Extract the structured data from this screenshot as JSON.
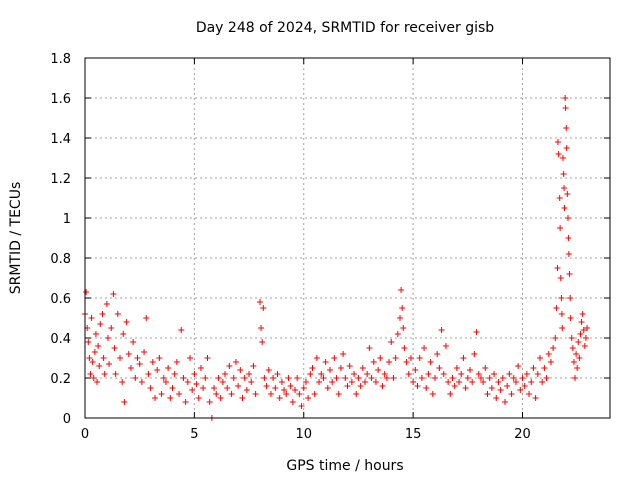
{
  "chart_data": {
    "type": "scatter",
    "title": "Day 248 of 2024, SRMTID for receiver gisb",
    "xlabel": "GPS time / hours",
    "ylabel": "SRMTID / TECUs",
    "xlim": [
      0,
      24
    ],
    "ylim": [
      0,
      1.8
    ],
    "x_ticks": [
      0,
      5,
      10,
      15,
      20
    ],
    "x_tick_labels": [
      "0",
      "5",
      "10",
      "15",
      "20"
    ],
    "y_ticks": [
      0,
      0.2,
      0.4,
      0.6,
      0.8,
      1,
      1.2,
      1.4,
      1.6,
      1.8
    ],
    "y_tick_labels": [
      "0",
      "0.2",
      "0.4",
      "0.6",
      "0.8",
      "1",
      "1.2",
      "1.4",
      "1.6",
      "1.8"
    ],
    "grid": true,
    "marker": "+",
    "color": "#ff0000",
    "series": [
      {
        "name": "SRMTID",
        "points": [
          [
            0.0,
            0.52
          ],
          [
            0.05,
            0.63
          ],
          [
            0.1,
            0.45
          ],
          [
            0.15,
            0.38
          ],
          [
            0.2,
            0.3
          ],
          [
            0.25,
            0.22
          ],
          [
            0.3,
            0.5
          ],
          [
            0.35,
            0.28
          ],
          [
            0.4,
            0.2
          ],
          [
            0.45,
            0.33
          ],
          [
            0.5,
            0.42
          ],
          [
            0.55,
            0.18
          ],
          [
            0.6,
            0.36
          ],
          [
            0.65,
            0.26
          ],
          [
            0.7,
            0.47
          ],
          [
            0.8,
            0.52
          ],
          [
            0.85,
            0.3
          ],
          [
            0.9,
            0.22
          ],
          [
            1.0,
            0.57
          ],
          [
            1.05,
            0.4
          ],
          [
            1.1,
            0.27
          ],
          [
            1.2,
            0.45
          ],
          [
            1.3,
            0.62
          ],
          [
            1.35,
            0.35
          ],
          [
            1.4,
            0.22
          ],
          [
            1.5,
            0.52
          ],
          [
            1.6,
            0.3
          ],
          [
            1.7,
            0.18
          ],
          [
            1.75,
            0.42
          ],
          [
            1.8,
            0.08
          ],
          [
            1.9,
            0.48
          ],
          [
            2.0,
            0.32
          ],
          [
            2.1,
            0.25
          ],
          [
            2.2,
            0.38
          ],
          [
            2.3,
            0.2
          ],
          [
            2.4,
            0.3
          ],
          [
            2.5,
            0.27
          ],
          [
            2.6,
            0.18
          ],
          [
            2.7,
            0.33
          ],
          [
            2.8,
            0.5
          ],
          [
            2.9,
            0.22
          ],
          [
            3.0,
            0.15
          ],
          [
            3.1,
            0.28
          ],
          [
            3.2,
            0.1
          ],
          [
            3.3,
            0.24
          ],
          [
            3.4,
            0.3
          ],
          [
            3.5,
            0.12
          ],
          [
            3.6,
            0.2
          ],
          [
            3.7,
            0.18
          ],
          [
            3.8,
            0.25
          ],
          [
            3.9,
            0.1
          ],
          [
            4.0,
            0.15
          ],
          [
            4.1,
            0.22
          ],
          [
            4.2,
            0.28
          ],
          [
            4.3,
            0.12
          ],
          [
            4.4,
            0.44
          ],
          [
            4.5,
            0.2
          ],
          [
            4.6,
            0.08
          ],
          [
            4.7,
            0.18
          ],
          [
            4.8,
            0.3
          ],
          [
            4.9,
            0.14
          ],
          [
            5.0,
            0.22
          ],
          [
            5.1,
            0.17
          ],
          [
            5.2,
            0.1
          ],
          [
            5.3,
            0.25
          ],
          [
            5.4,
            0.15
          ],
          [
            5.5,
            0.2
          ],
          [
            5.6,
            0.3
          ],
          [
            5.7,
            0.08
          ],
          [
            5.8,
            0.0
          ],
          [
            5.9,
            0.15
          ],
          [
            6.0,
            0.12
          ],
          [
            6.1,
            0.2
          ],
          [
            6.2,
            0.1
          ],
          [
            6.3,
            0.18
          ],
          [
            6.4,
            0.22
          ],
          [
            6.5,
            0.15
          ],
          [
            6.6,
            0.26
          ],
          [
            6.7,
            0.12
          ],
          [
            6.8,
            0.2
          ],
          [
            6.9,
            0.28
          ],
          [
            7.0,
            0.16
          ],
          [
            7.1,
            0.24
          ],
          [
            7.2,
            0.1
          ],
          [
            7.3,
            0.2
          ],
          [
            7.4,
            0.14
          ],
          [
            7.5,
            0.22
          ],
          [
            7.6,
            0.18
          ],
          [
            7.7,
            0.26
          ],
          [
            7.8,
            0.12
          ],
          [
            8.0,
            0.58
          ],
          [
            8.05,
            0.45
          ],
          [
            8.1,
            0.38
          ],
          [
            8.15,
            0.55
          ],
          [
            8.2,
            0.2
          ],
          [
            8.3,
            0.16
          ],
          [
            8.4,
            0.24
          ],
          [
            8.5,
            0.12
          ],
          [
            8.6,
            0.2
          ],
          [
            8.7,
            0.15
          ],
          [
            8.8,
            0.22
          ],
          [
            8.9,
            0.1
          ],
          [
            9.0,
            0.18
          ],
          [
            9.1,
            0.14
          ],
          [
            9.2,
            0.12
          ],
          [
            9.3,
            0.2
          ],
          [
            9.4,
            0.16
          ],
          [
            9.5,
            0.08
          ],
          [
            9.6,
            0.14
          ],
          [
            9.7,
            0.2
          ],
          [
            9.8,
            0.12
          ],
          [
            9.9,
            0.06
          ],
          [
            10.0,
            0.15
          ],
          [
            10.1,
            0.18
          ],
          [
            10.2,
            0.1
          ],
          [
            10.3,
            0.22
          ],
          [
            10.4,
            0.25
          ],
          [
            10.5,
            0.12
          ],
          [
            10.6,
            0.3
          ],
          [
            10.7,
            0.18
          ],
          [
            10.8,
            0.22
          ],
          [
            10.9,
            0.2
          ],
          [
            11.0,
            0.28
          ],
          [
            11.1,
            0.15
          ],
          [
            11.2,
            0.24
          ],
          [
            11.3,
            0.18
          ],
          [
            11.4,
            0.3
          ],
          [
            11.5,
            0.2
          ],
          [
            11.6,
            0.12
          ],
          [
            11.7,
            0.25
          ],
          [
            11.8,
            0.32
          ],
          [
            11.9,
            0.2
          ],
          [
            12.0,
            0.16
          ],
          [
            12.1,
            0.26
          ],
          [
            12.2,
            0.18
          ],
          [
            12.3,
            0.22
          ],
          [
            12.4,
            0.12
          ],
          [
            12.5,
            0.2
          ],
          [
            12.6,
            0.16
          ],
          [
            12.7,
            0.25
          ],
          [
            12.8,
            0.18
          ],
          [
            12.9,
            0.22
          ],
          [
            13.0,
            0.35
          ],
          [
            13.1,
            0.2
          ],
          [
            13.2,
            0.28
          ],
          [
            13.3,
            0.18
          ],
          [
            13.4,
            0.24
          ],
          [
            13.5,
            0.3
          ],
          [
            13.6,
            0.16
          ],
          [
            13.7,
            0.22
          ],
          [
            13.8,
            0.2
          ],
          [
            13.9,
            0.28
          ],
          [
            14.0,
            0.38
          ],
          [
            14.1,
            0.2
          ],
          [
            14.2,
            0.3
          ],
          [
            14.3,
            0.42
          ],
          [
            14.4,
            0.5
          ],
          [
            14.45,
            0.64
          ],
          [
            14.5,
            0.55
          ],
          [
            14.55,
            0.45
          ],
          [
            14.6,
            0.35
          ],
          [
            14.7,
            0.28
          ],
          [
            14.8,
            0.22
          ],
          [
            14.9,
            0.3
          ],
          [
            15.0,
            0.18
          ],
          [
            15.1,
            0.24
          ],
          [
            15.2,
            0.16
          ],
          [
            15.3,
            0.3
          ],
          [
            15.4,
            0.2
          ],
          [
            15.5,
            0.35
          ],
          [
            15.6,
            0.15
          ],
          [
            15.7,
            0.22
          ],
          [
            15.8,
            0.28
          ],
          [
            15.9,
            0.12
          ],
          [
            16.0,
            0.2
          ],
          [
            16.1,
            0.32
          ],
          [
            16.2,
            0.25
          ],
          [
            16.3,
            0.44
          ],
          [
            16.4,
            0.22
          ],
          [
            16.5,
            0.36
          ],
          [
            16.6,
            0.18
          ],
          [
            16.7,
            0.12
          ],
          [
            16.8,
            0.2
          ],
          [
            16.9,
            0.16
          ],
          [
            17.0,
            0.25
          ],
          [
            17.1,
            0.18
          ],
          [
            17.2,
            0.22
          ],
          [
            17.3,
            0.3
          ],
          [
            17.4,
            0.15
          ],
          [
            17.5,
            0.2
          ],
          [
            17.6,
            0.24
          ],
          [
            17.7,
            0.18
          ],
          [
            17.8,
            0.32
          ],
          [
            17.9,
            0.43
          ],
          [
            18.0,
            0.22
          ],
          [
            18.1,
            0.2
          ],
          [
            18.2,
            0.18
          ],
          [
            18.3,
            0.25
          ],
          [
            18.4,
            0.12
          ],
          [
            18.5,
            0.2
          ],
          [
            18.6,
            0.15
          ],
          [
            18.7,
            0.22
          ],
          [
            18.8,
            0.1
          ],
          [
            18.9,
            0.18
          ],
          [
            19.0,
            0.14
          ],
          [
            19.1,
            0.2
          ],
          [
            19.2,
            0.08
          ],
          [
            19.3,
            0.16
          ],
          [
            19.4,
            0.22
          ],
          [
            19.5,
            0.12
          ],
          [
            19.6,
            0.2
          ],
          [
            19.7,
            0.18
          ],
          [
            19.8,
            0.26
          ],
          [
            19.9,
            0.14
          ],
          [
            20.0,
            0.2
          ],
          [
            20.1,
            0.16
          ],
          [
            20.2,
            0.22
          ],
          [
            20.3,
            0.12
          ],
          [
            20.4,
            0.18
          ],
          [
            20.5,
            0.25
          ],
          [
            20.6,
            0.1
          ],
          [
            20.7,
            0.22
          ],
          [
            20.8,
            0.3
          ],
          [
            20.9,
            0.18
          ],
          [
            21.0,
            0.25
          ],
          [
            21.1,
            0.2
          ],
          [
            21.2,
            0.32
          ],
          [
            21.3,
            0.28
          ],
          [
            21.4,
            0.35
          ],
          [
            21.5,
            0.4
          ],
          [
            21.55,
            0.55
          ],
          [
            21.6,
            0.75
          ],
          [
            21.62,
            1.38
          ],
          [
            21.65,
            1.32
          ],
          [
            21.7,
            1.1
          ],
          [
            21.72,
            0.95
          ],
          [
            21.75,
            0.7
          ],
          [
            21.78,
            0.6
          ],
          [
            21.8,
            0.52
          ],
          [
            21.82,
            0.45
          ],
          [
            21.85,
            1.3
          ],
          [
            21.88,
            1.22
          ],
          [
            21.9,
            1.15
          ],
          [
            21.92,
            1.05
          ],
          [
            21.95,
            1.6
          ],
          [
            21.97,
            1.55
          ],
          [
            22.0,
            1.45
          ],
          [
            22.02,
            1.35
          ],
          [
            22.05,
            1.12
          ],
          [
            22.08,
            1.0
          ],
          [
            22.1,
            0.9
          ],
          [
            22.12,
            0.82
          ],
          [
            22.15,
            0.72
          ],
          [
            22.18,
            0.6
          ],
          [
            22.2,
            0.5
          ],
          [
            22.25,
            0.4
          ],
          [
            22.3,
            0.35
          ],
          [
            22.35,
            0.28
          ],
          [
            22.4,
            0.2
          ],
          [
            22.45,
            0.32
          ],
          [
            22.5,
            0.25
          ],
          [
            22.55,
            0.38
          ],
          [
            22.6,
            0.3
          ],
          [
            22.65,
            0.42
          ],
          [
            22.7,
            0.48
          ],
          [
            22.75,
            0.52
          ],
          [
            22.8,
            0.44
          ],
          [
            22.85,
            0.36
          ],
          [
            22.9,
            0.4
          ],
          [
            22.95,
            0.45
          ]
        ]
      }
    ]
  }
}
